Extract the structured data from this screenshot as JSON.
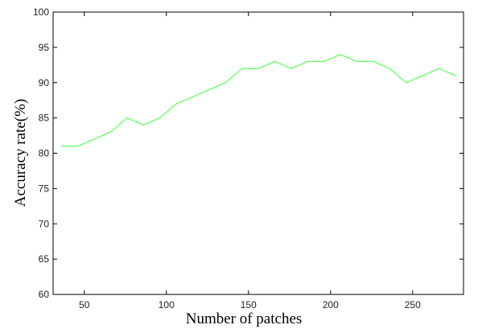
{
  "chart_data": {
    "type": "line",
    "title": "",
    "xlabel": "Number of patches",
    "ylabel": "Accuracy rate(%)",
    "xlim": [
      31,
      281
    ],
    "ylim": [
      60,
      100
    ],
    "xticks": [
      50,
      100,
      150,
      200,
      250
    ],
    "yticks": [
      60,
      65,
      70,
      75,
      80,
      85,
      90,
      95,
      100
    ],
    "grid": false,
    "legend": null,
    "series": [
      {
        "color": "#66ff66",
        "x": [
          36,
          46,
          56,
          66,
          76,
          86,
          96,
          106,
          116,
          126,
          136,
          146,
          156,
          166,
          176,
          186,
          196,
          206,
          216,
          226,
          236,
          246,
          256,
          266,
          276
        ],
        "y": [
          81,
          81,
          82,
          83,
          85,
          84,
          85,
          87,
          88,
          89,
          90,
          92,
          92,
          93,
          92,
          93,
          93,
          94,
          93,
          93,
          92,
          90,
          91,
          92,
          91
        ]
      }
    ]
  }
}
